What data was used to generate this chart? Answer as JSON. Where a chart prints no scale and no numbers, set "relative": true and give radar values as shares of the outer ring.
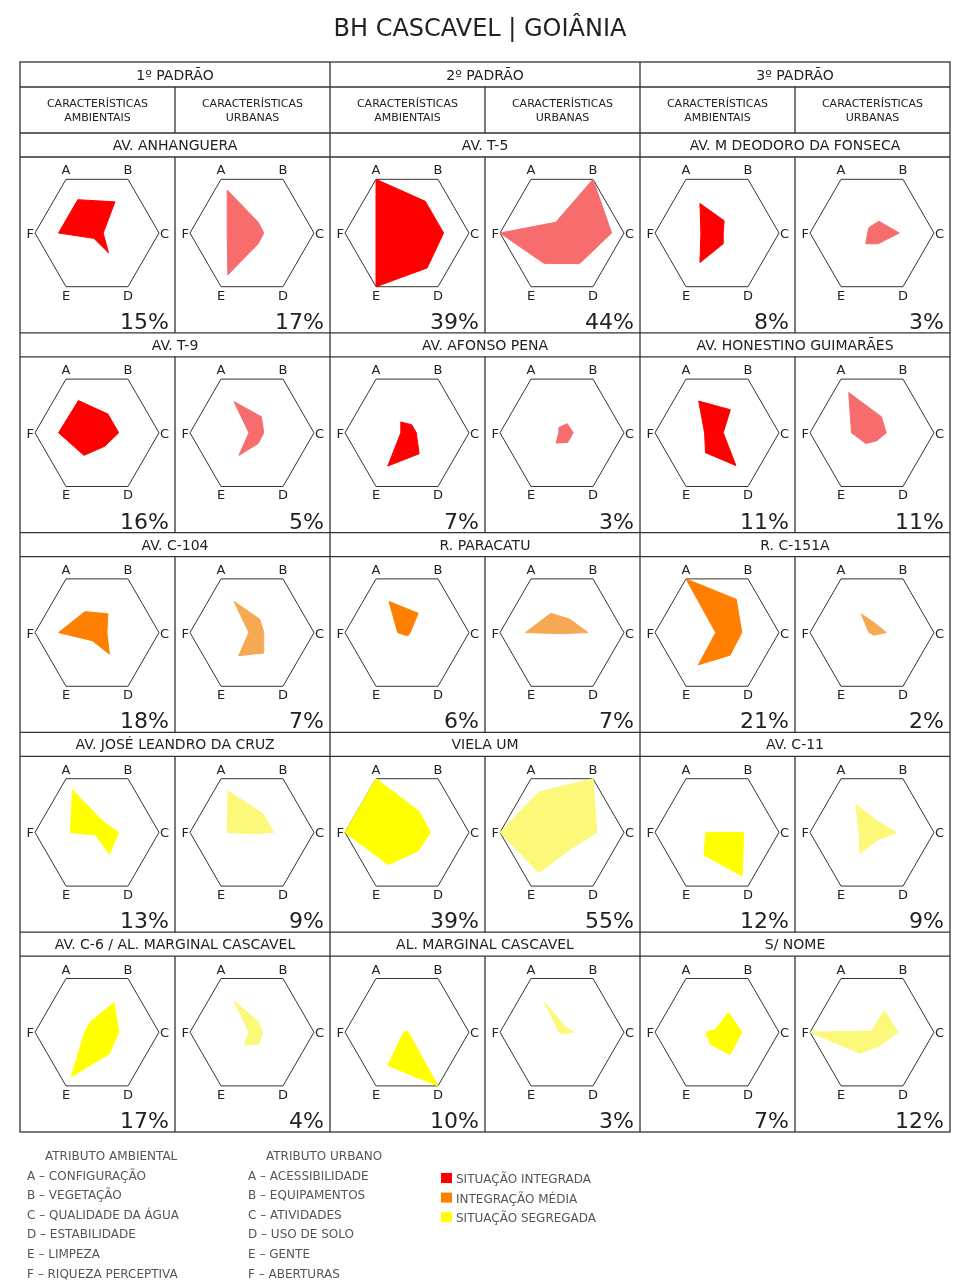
{
  "chart_data": [
    {
      "type": "other",
      "title": "BH CASCAVEL | GOIÂNIA",
      "annotations": [
        "1º PADRÃO",
        "2º PADRÃO",
        "3º PADRÃO",
        "CARACTERÍSTICAS AMBIENTAIS",
        "CARACTERÍSTICAS URBANAS",
        "CARACTERÍSTICAS AMBIENTAIS",
        "CARACTERÍSTICAS URBANAS",
        "CARACTERÍSTICAS AMBIENTAIS",
        "CARACTERÍSTICAS URBANAS",
        "ATRIBUTO AMBIENTAL",
        "A – CONFIGURAÇÃO",
        "B – VEGETAÇÃO",
        "C – QUALIDADE DA ÁGUA",
        "D – ESTABILIDADE",
        "E – LIMPEZA",
        "F – RIQUEZA PERCEPTIVA",
        "ATRIBUTO URBANO",
        "A – ACESSIBILIDADE",
        "B – EQUIPAMENTOS",
        "C – ATIVIDADES",
        "D – USO DE SOLO",
        "E – GENTE",
        "F – ABERTURAS"
      ],
      "legend": "bottom",
      "series": [
        {
          "name": "SITUAÇÃO INTEGRADA",
          "color": "#ff0000"
        },
        {
          "name": "INTEGRAÇÃO MÉDIA",
          "color": "#ff7f00"
        },
        {
          "name": "SITUAÇÃO SEGREGADA",
          "color": "#ffff00"
        }
      ]
    },
    {
      "type": "radar",
      "title": "AV. ANHANGUERA",
      "categories": [
        "A",
        "B",
        "C",
        "D",
        "E",
        "F"
      ],
      "relative": true,
      "series": [
        {
          "color": "#ff0000",
          "values": [
            0.62,
            0.58,
            0.1,
            0.37,
            0.1,
            0.62
          ]
        }
      ],
      "annotations": [
        "15%"
      ]
    },
    {
      "type": "radar",
      "categories": [
        "A",
        "B",
        "C",
        "D",
        "E",
        "F"
      ],
      "relative": true,
      "series": [
        {
          "color": "#f76d6d",
          "values": [
            0.8,
            0.2,
            0.19,
            0.2,
            0.78,
            0.4
          ]
        }
      ],
      "annotations": [
        "17%"
      ]
    },
    {
      "type": "radar",
      "title": "AV. T-5",
      "categories": [
        "A",
        "B",
        "C",
        "D",
        "E",
        "F"
      ],
      "relative": true,
      "series": [
        {
          "color": "#ff0000",
          "values": [
            1,
            0.59,
            0.59,
            0.65,
            1,
            0.5
          ]
        }
      ],
      "annotations": [
        "39%"
      ]
    },
    {
      "type": "radar",
      "categories": [
        "A",
        "B",
        "C",
        "D",
        "E",
        "F"
      ],
      "relative": true,
      "series": [
        {
          "color": "#f76d6d",
          "values": [
            0.2,
            1,
            0.8,
            0.57,
            0.57,
            1
          ]
        }
      ],
      "annotations": [
        "44%"
      ]
    },
    {
      "type": "radar",
      "title": "AV. M DEODORO DA FONSECA",
      "categories": [
        "A",
        "B",
        "C",
        "D",
        "E",
        "F"
      ],
      "relative": true,
      "series": [
        {
          "color": "#ff0000",
          "values": [
            0.55,
            0.23,
            0.1,
            0.2,
            0.55,
            0.26
          ]
        }
      ],
      "annotations": [
        "8%"
      ]
    },
    {
      "type": "radar",
      "categories": [
        "A",
        "B",
        "C",
        "D",
        "E",
        "F"
      ],
      "relative": true,
      "series": [
        {
          "color": "#f76d6d",
          "values": [
            0.1,
            0.22,
            0.44,
            0.2,
            0.2,
            0.07
          ]
        }
      ],
      "annotations": [
        "3%"
      ]
    },
    {
      "type": "radar",
      "title": "AV. T-9",
      "categories": [
        "A",
        "B",
        "C",
        "D",
        "E",
        "F"
      ],
      "relative": true,
      "series": [
        {
          "color": "#ff0000",
          "values": [
            0.6,
            0.35,
            0.35,
            0.25,
            0.42,
            0.62
          ]
        }
      ],
      "annotations": [
        "16%"
      ]
    },
    {
      "type": "radar",
      "categories": [
        "A",
        "B",
        "C",
        "D",
        "E",
        "F"
      ],
      "relative": true,
      "series": [
        {
          "color": "#f76d6d",
          "values": [
            0.58,
            0.3,
            0.19,
            0.2,
            0.42,
            0.05
          ]
        }
      ],
      "annotations": [
        "5%"
      ]
    },
    {
      "type": "radar",
      "title": "AV. AFONSO PENA",
      "categories": [
        "A",
        "B",
        "C",
        "D",
        "E",
        "F"
      ],
      "relative": true,
      "series": [
        {
          "color": "#ff0000",
          "values": [
            0.2,
            0.15,
            0.15,
            0.39,
            0.62,
            0.1
          ]
        }
      ],
      "annotations": [
        "7%"
      ]
    },
    {
      "type": "radar",
      "categories": [
        "A",
        "B",
        "C",
        "D",
        "E",
        "F"
      ],
      "relative": true,
      "series": [
        {
          "color": "#f76d6d",
          "values": [
            0.1,
            0.17,
            0.18,
            0.18,
            0.19,
            0.05
          ]
        }
      ],
      "annotations": [
        "3%"
      ]
    },
    {
      "type": "radar",
      "title": "AV. HONESTINO GUIMARÃES",
      "categories": [
        "A",
        "B",
        "C",
        "D",
        "E",
        "F"
      ],
      "relative": true,
      "series": [
        {
          "color": "#ff0000",
          "values": [
            0.59,
            0.43,
            0.1,
            0.61,
            0.37,
            0.2
          ]
        }
      ],
      "annotations": [
        "11%"
      ]
    },
    {
      "type": "radar",
      "categories": [
        "A",
        "B",
        "C",
        "D",
        "E",
        "F"
      ],
      "relative": true,
      "series": [
        {
          "color": "#f76d6d",
          "values": [
            0.75,
            0.3,
            0.23,
            0.15,
            0.2,
            0.33
          ]
        }
      ],
      "annotations": [
        "11%"
      ]
    },
    {
      "type": "radar",
      "title": "AV. C-104",
      "categories": [
        "A",
        "B",
        "C",
        "D",
        "E",
        "F"
      ],
      "relative": true,
      "series": [
        {
          "color": "#ff7f00",
          "values": [
            0.39,
            0.35,
            0.16,
            0.4,
            0.15,
            0.62
          ]
        }
      ],
      "annotations": [
        "18%"
      ]
    },
    {
      "type": "radar",
      "categories": [
        "A",
        "B",
        "C",
        "D",
        "E",
        "F"
      ],
      "relative": true,
      "series": [
        {
          "color": "#f5a953",
          "values": [
            0.58,
            0.25,
            0.19,
            0.38,
            0.43,
            0.05
          ]
        }
      ],
      "annotations": [
        "7%"
      ]
    },
    {
      "type": "radar",
      "title": "R. PARACATU",
      "categories": [
        "A",
        "B",
        "C",
        "D",
        "E",
        "F"
      ],
      "relative": true,
      "series": [
        {
          "color": "#ff7f00",
          "values": [
            0.58,
            0.36,
            0.05,
            0.05,
            0.05,
            0.15
          ]
        }
      ],
      "annotations": [
        "6%"
      ]
    },
    {
      "type": "radar",
      "categories": [
        "A",
        "B",
        "C",
        "D",
        "E",
        "F"
      ],
      "relative": true,
      "series": [
        {
          "color": "#f5a953",
          "values": [
            0.36,
            0.25,
            0.42,
            0.02,
            0.02,
            0.59
          ]
        }
      ],
      "annotations": [
        "7%"
      ]
    },
    {
      "type": "radar",
      "title": "R. C-151A",
      "categories": [
        "A",
        "B",
        "C",
        "D",
        "E",
        "F"
      ],
      "relative": true,
      "series": [
        {
          "color": "#ff7f00",
          "values": [
            1,
            0.62,
            0.4,
            0.42,
            0.6,
            0.02
          ]
        }
      ],
      "annotations": [
        "21%"
      ]
    },
    {
      "type": "radar",
      "categories": [
        "A",
        "B",
        "C",
        "D",
        "E",
        "F"
      ],
      "relative": true,
      "series": [
        {
          "color": "#f5a953",
          "values": [
            0.35,
            0.15,
            0.23,
            0.05,
            0.02,
            0.05
          ]
        }
      ],
      "annotations": [
        "2%"
      ]
    },
    {
      "type": "radar",
      "title": "AV. JOSÉ LEANDRO DA CRUZ",
      "categories": [
        "A",
        "B",
        "C",
        "D",
        "E",
        "F"
      ],
      "relative": true,
      "series": [
        {
          "color": "#ffff00",
          "values": [
            0.79,
            0.2,
            0.35,
            0.4,
            0.05,
            0.43
          ]
        }
      ],
      "annotations": [
        "13%"
      ]
    },
    {
      "type": "radar",
      "categories": [
        "A",
        "B",
        "C",
        "D",
        "E",
        "F"
      ],
      "relative": true,
      "series": [
        {
          "color": "#fbf87a",
          "values": [
            0.77,
            0.35,
            0.35,
            0.02,
            0.02,
            0.4
          ]
        }
      ],
      "annotations": [
        "9%"
      ]
    },
    {
      "type": "radar",
      "title": "VIELA UM",
      "categories": [
        "A",
        "B",
        "C",
        "D",
        "E",
        "F"
      ],
      "relative": true,
      "series": [
        {
          "color": "#ffff00",
          "values": [
            1,
            0.39,
            0.38,
            0.35,
            0.6,
            1
          ]
        }
      ],
      "annotations": [
        "39%"
      ]
    },
    {
      "type": "radar",
      "categories": [
        "A",
        "B",
        "C",
        "D",
        "E",
        "F"
      ],
      "relative": true,
      "series": [
        {
          "color": "#fbf87a",
          "values": [
            0.75,
            1,
            0.56,
            0.3,
            0.75,
            1
          ]
        }
      ],
      "annotations": [
        "55%"
      ]
    },
    {
      "type": "radar",
      "title": "AV. C-11",
      "categories": [
        "A",
        "B",
        "C",
        "D",
        "E",
        "F"
      ],
      "relative": true,
      "series": [
        {
          "color": "#ffff00",
          "values": [
            0,
            0,
            0.43,
            0.81,
            0.42,
            0.18
          ]
        }
      ],
      "annotations": [
        "12%"
      ]
    },
    {
      "type": "radar",
      "categories": [
        "A",
        "B",
        "C",
        "D",
        "E",
        "F"
      ],
      "relative": true,
      "series": [
        {
          "color": "#fbf87a",
          "values": [
            0.52,
            0.2,
            0.4,
            0.15,
            0.39,
            0.21
          ]
        }
      ],
      "annotations": [
        "9%"
      ]
    },
    {
      "type": "radar",
      "title": "AV. C-6  / AL. MARGINAL CASCAVEL",
      "categories": [
        "A",
        "B",
        "C",
        "D",
        "E",
        "F"
      ],
      "relative": true,
      "series": [
        {
          "color": "#ffff00",
          "values": [
            0.2,
            0.55,
            0.35,
            0.4,
            0.83,
            0.2
          ]
        }
      ],
      "annotations": [
        "17%"
      ]
    },
    {
      "type": "radar",
      "categories": [
        "A",
        "B",
        "C",
        "D",
        "E",
        "F"
      ],
      "relative": true,
      "series": [
        {
          "color": "#fbf87a",
          "values": [
            0.58,
            0.2,
            0.17,
            0.22,
            0.24,
            0.05
          ]
        }
      ],
      "annotations": [
        "4%"
      ]
    },
    {
      "type": "radar",
      "title": "AL. MARGINAL CASCAVEL",
      "categories": [
        "A",
        "B",
        "C",
        "D",
        "E",
        "F"
      ],
      "relative": true,
      "series": [
        {
          "color": "#ffff00",
          "values": [
            0.02,
            0.02,
            0.02,
            1,
            0.62,
            0.05
          ]
        }
      ],
      "annotations": [
        "10%"
      ]
    },
    {
      "type": "radar",
      "categories": [
        "A",
        "B",
        "C",
        "D",
        "E",
        "F"
      ],
      "relative": true,
      "series": [
        {
          "color": "#fbf87a",
          "values": [
            0.56,
            0.1,
            0.19,
            0.03,
            0.02,
            0.05
          ]
        }
      ],
      "annotations": [
        "3%"
      ]
    },
    {
      "type": "radar",
      "title": "S/ NOME",
      "categories": [
        "A",
        "B",
        "C",
        "D",
        "E",
        "F"
      ],
      "relative": true,
      "series": [
        {
          "color": "#ffff00",
          "values": [
            0.05,
            0.37,
            0.4,
            0.42,
            0.22,
            0.18
          ]
        }
      ],
      "annotations": [
        "7%"
      ]
    },
    {
      "type": "radar",
      "categories": [
        "A",
        "B",
        "C",
        "D",
        "E",
        "F"
      ],
      "relative": true,
      "series": [
        {
          "color": "#fbf87a",
          "values": [
            0.02,
            0.4,
            0.42,
            0.25,
            0.39,
            1
          ]
        }
      ],
      "annotations": [
        "12%"
      ]
    }
  ]
}
